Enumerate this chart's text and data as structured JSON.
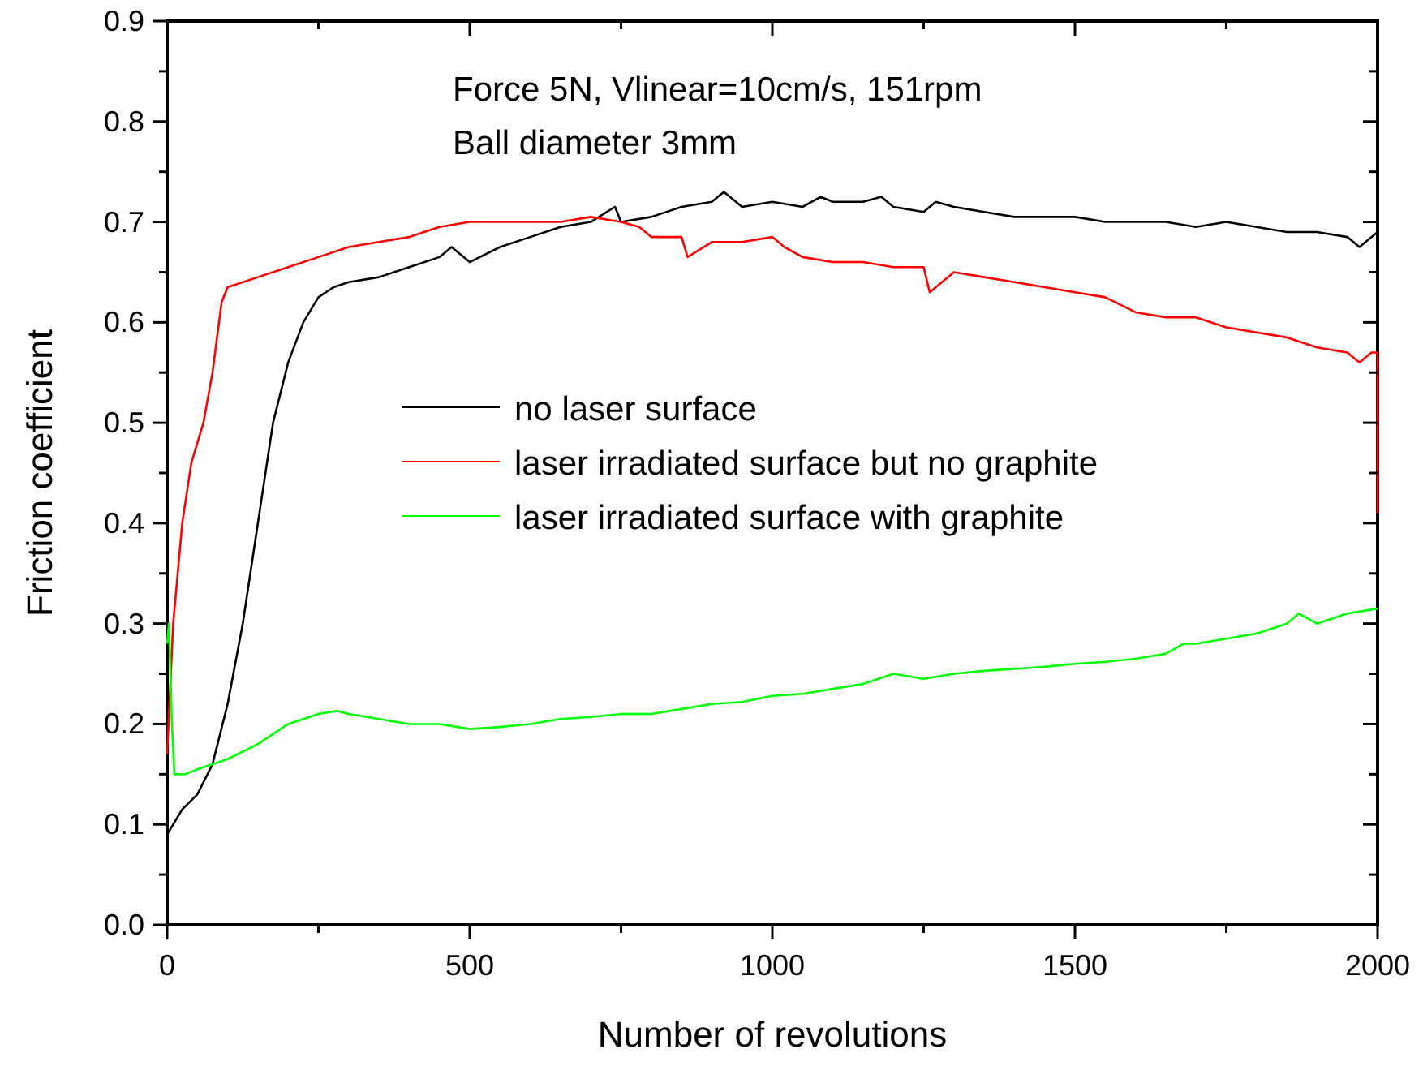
{
  "chart_data": {
    "type": "line",
    "xlabel": "Number of revolutions",
    "ylabel": "Friction coefficient",
    "annotations": [
      "Force 5N, Vlinear=10cm/s, 151rpm",
      "Ball diameter 3mm"
    ],
    "xlim": [
      0,
      2000
    ],
    "ylim": [
      0,
      0.9
    ],
    "xticks": [
      0,
      {
        "value": 250,
        "label": null
      },
      500,
      {
        "value": 750,
        "label": null
      },
      1000,
      {
        "value": 1250,
        "label": null
      },
      1500,
      {
        "value": 1750,
        "label": null
      },
      2000
    ],
    "yticks": [
      {
        "value": 0,
        "label": "0.0"
      },
      {
        "value": 0.05,
        "label": null
      },
      {
        "value": 0.1,
        "label": "0.1"
      },
      {
        "value": 0.15,
        "label": null
      },
      {
        "value": 0.2,
        "label": "0.2"
      },
      {
        "value": 0.25,
        "label": null
      },
      {
        "value": 0.3,
        "label": "0.3"
      },
      {
        "value": 0.35,
        "label": null
      },
      {
        "value": 0.4,
        "label": "0.4"
      },
      {
        "value": 0.45,
        "label": null
      },
      {
        "value": 0.5,
        "label": "0.5"
      },
      {
        "value": 0.55,
        "label": null
      },
      {
        "value": 0.6,
        "label": "0.6"
      },
      {
        "value": 0.65,
        "label": null
      },
      {
        "value": 0.7,
        "label": "0.7"
      },
      {
        "value": 0.75,
        "label": null
      },
      {
        "value": 0.8,
        "label": "0.8"
      },
      {
        "value": 0.85,
        "label": null
      },
      {
        "value": 0.9,
        "label": "0.9"
      }
    ],
    "legend": "center",
    "marker": "none",
    "line_style": "solid",
    "series": [
      {
        "name": "no laser surface",
        "color": "#000000",
        "x": [
          0,
          10,
          25,
          50,
          75,
          100,
          125,
          150,
          175,
          200,
          225,
          250,
          275,
          300,
          350,
          400,
          450,
          470,
          500,
          550,
          600,
          650,
          700,
          740,
          750,
          800,
          850,
          900,
          920,
          950,
          1000,
          1050,
          1080,
          1100,
          1150,
          1180,
          1200,
          1250,
          1270,
          1300,
          1350,
          1400,
          1450,
          1500,
          1550,
          1600,
          1650,
          1700,
          1750,
          1800,
          1850,
          1900,
          1950,
          1970,
          2000
        ],
        "values": [
          0.09,
          0.1,
          0.115,
          0.13,
          0.16,
          0.22,
          0.3,
          0.4,
          0.5,
          0.56,
          0.6,
          0.625,
          0.635,
          0.64,
          0.645,
          0.655,
          0.665,
          0.675,
          0.66,
          0.675,
          0.685,
          0.695,
          0.7,
          0.715,
          0.7,
          0.705,
          0.715,
          0.72,
          0.73,
          0.715,
          0.72,
          0.715,
          0.725,
          0.72,
          0.72,
          0.725,
          0.715,
          0.71,
          0.72,
          0.715,
          0.71,
          0.705,
          0.705,
          0.705,
          0.7,
          0.7,
          0.7,
          0.695,
          0.7,
          0.695,
          0.69,
          0.69,
          0.685,
          0.675,
          0.69
        ]
      },
      {
        "name": "laser irradiated surface but no graphite",
        "color": "#ff0000",
        "x": [
          0,
          10,
          25,
          40,
          60,
          75,
          90,
          100,
          150,
          200,
          250,
          300,
          350,
          400,
          450,
          500,
          550,
          600,
          650,
          700,
          750,
          780,
          800,
          850,
          860,
          900,
          950,
          1000,
          1020,
          1050,
          1100,
          1150,
          1200,
          1250,
          1260,
          1300,
          1350,
          1400,
          1450,
          1500,
          1550,
          1600,
          1650,
          1700,
          1750,
          1800,
          1850,
          1900,
          1950,
          1970,
          1990,
          2000,
          2000
        ],
        "values": [
          0.17,
          0.3,
          0.4,
          0.46,
          0.5,
          0.55,
          0.62,
          0.635,
          0.645,
          0.655,
          0.665,
          0.675,
          0.68,
          0.685,
          0.695,
          0.7,
          0.7,
          0.7,
          0.7,
          0.705,
          0.7,
          0.695,
          0.685,
          0.685,
          0.665,
          0.68,
          0.68,
          0.685,
          0.675,
          0.665,
          0.66,
          0.66,
          0.655,
          0.655,
          0.63,
          0.65,
          0.645,
          0.64,
          0.635,
          0.63,
          0.625,
          0.61,
          0.605,
          0.605,
          0.595,
          0.59,
          0.585,
          0.575,
          0.57,
          0.56,
          0.57,
          0.57,
          0.41
        ]
      },
      {
        "name": "laser irradiated surface with graphite",
        "color": "#00ff00",
        "x": [
          0,
          3,
          8,
          12,
          30,
          50,
          100,
          150,
          200,
          250,
          280,
          300,
          350,
          400,
          450,
          500,
          550,
          600,
          650,
          700,
          750,
          800,
          850,
          900,
          950,
          1000,
          1050,
          1100,
          1150,
          1200,
          1250,
          1300,
          1350,
          1400,
          1450,
          1500,
          1550,
          1600,
          1650,
          1680,
          1700,
          1750,
          1800,
          1850,
          1870,
          1900,
          1950,
          2000
        ],
        "values": [
          0.28,
          0.3,
          0.2,
          0.15,
          0.15,
          0.155,
          0.165,
          0.18,
          0.2,
          0.21,
          0.213,
          0.21,
          0.205,
          0.2,
          0.2,
          0.195,
          0.197,
          0.2,
          0.205,
          0.207,
          0.21,
          0.21,
          0.215,
          0.22,
          0.222,
          0.228,
          0.23,
          0.235,
          0.24,
          0.25,
          0.245,
          0.25,
          0.253,
          0.255,
          0.257,
          0.26,
          0.262,
          0.265,
          0.27,
          0.28,
          0.28,
          0.285,
          0.29,
          0.3,
          0.31,
          0.3,
          0.31,
          0.315
        ]
      }
    ]
  }
}
